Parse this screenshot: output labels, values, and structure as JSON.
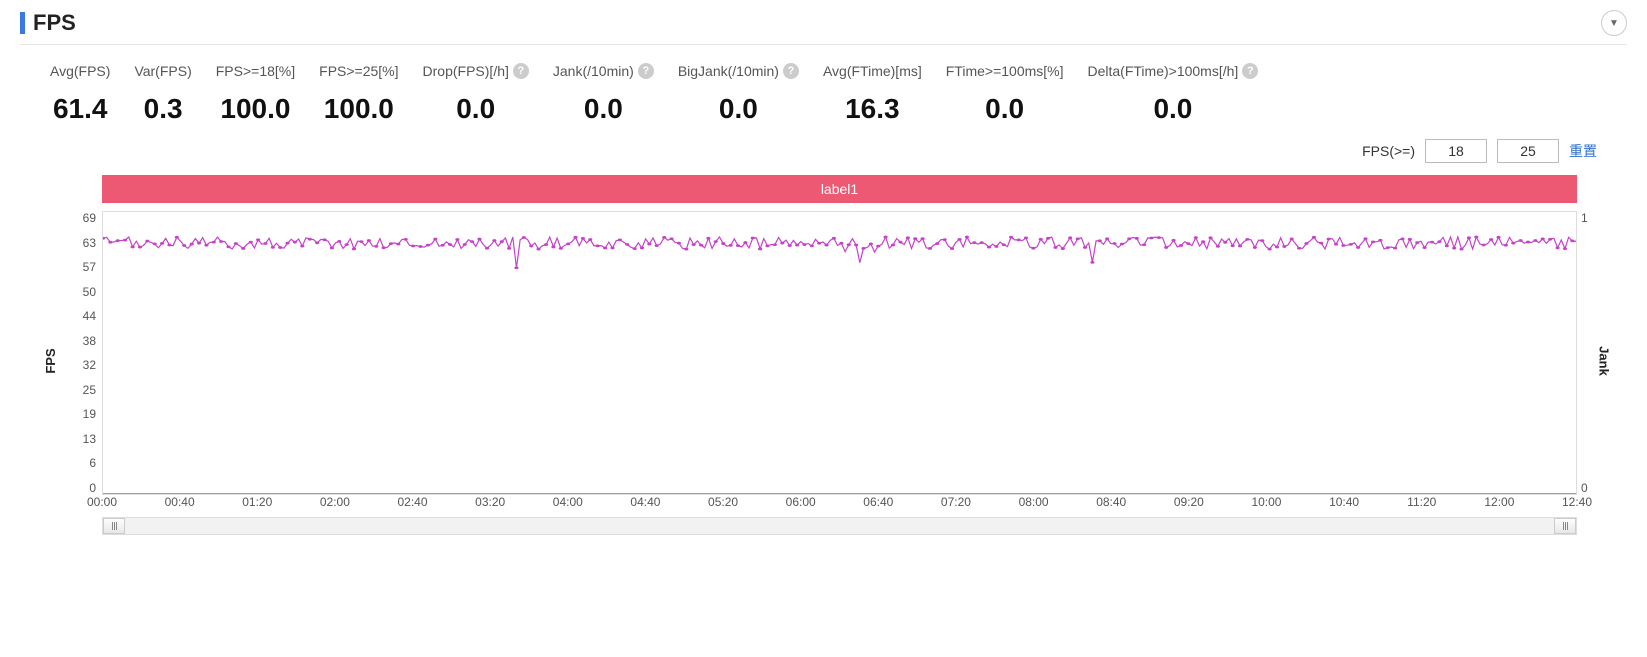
{
  "header": {
    "title": "FPS",
    "collapse_glyph": "▼"
  },
  "stats": [
    {
      "label": "Avg(FPS)",
      "value": "61.4",
      "help": false
    },
    {
      "label": "Var(FPS)",
      "value": "0.3",
      "help": false
    },
    {
      "label": "FPS>=18[%]",
      "value": "100.0",
      "help": false
    },
    {
      "label": "FPS>=25[%]",
      "value": "100.0",
      "help": false
    },
    {
      "label": "Drop(FPS)[/h]",
      "value": "0.0",
      "help": true
    },
    {
      "label": "Jank(/10min)",
      "value": "0.0",
      "help": true
    },
    {
      "label": "BigJank(/10min)",
      "value": "0.0",
      "help": true
    },
    {
      "label": "Avg(FTime)[ms]",
      "value": "16.3",
      "help": false
    },
    {
      "label": "FTime>=100ms[%]",
      "value": "0.0",
      "help": false
    },
    {
      "label": "Delta(FTime)>100ms[/h]",
      "value": "0.0",
      "help": true
    }
  ],
  "controls": {
    "fps_threshold_label": "FPS(>=)",
    "threshold1": "18",
    "threshold2": "25",
    "reset_label": "重置"
  },
  "chart": {
    "legend_label": "label1",
    "legend_bg": "#ed5873",
    "y_left_label": "FPS",
    "y_right_label": "Jank",
    "y_left_ticks": [
      "69",
      "63",
      "57",
      "50",
      "44",
      "38",
      "32",
      "25",
      "19",
      "13",
      "6",
      "0"
    ],
    "y_left_min": 0,
    "y_left_max": 69,
    "y_right_ticks": [
      "1",
      "0"
    ],
    "x_ticks": [
      "00:00",
      "00:40",
      "01:20",
      "02:00",
      "02:40",
      "03:20",
      "04:00",
      "04:40",
      "05:20",
      "06:00",
      "06:40",
      "07:20",
      "08:00",
      "08:40",
      "09:20",
      "10:00",
      "10:40",
      "11:20",
      "12:00",
      "12:40"
    ],
    "fps_line_color": "#c542c9",
    "baseline_color": "#f58b2e",
    "grid_color": "#eeeeee",
    "fps_mean": 61.4,
    "fps_noise": 1.5,
    "fps_points": 400
  }
}
